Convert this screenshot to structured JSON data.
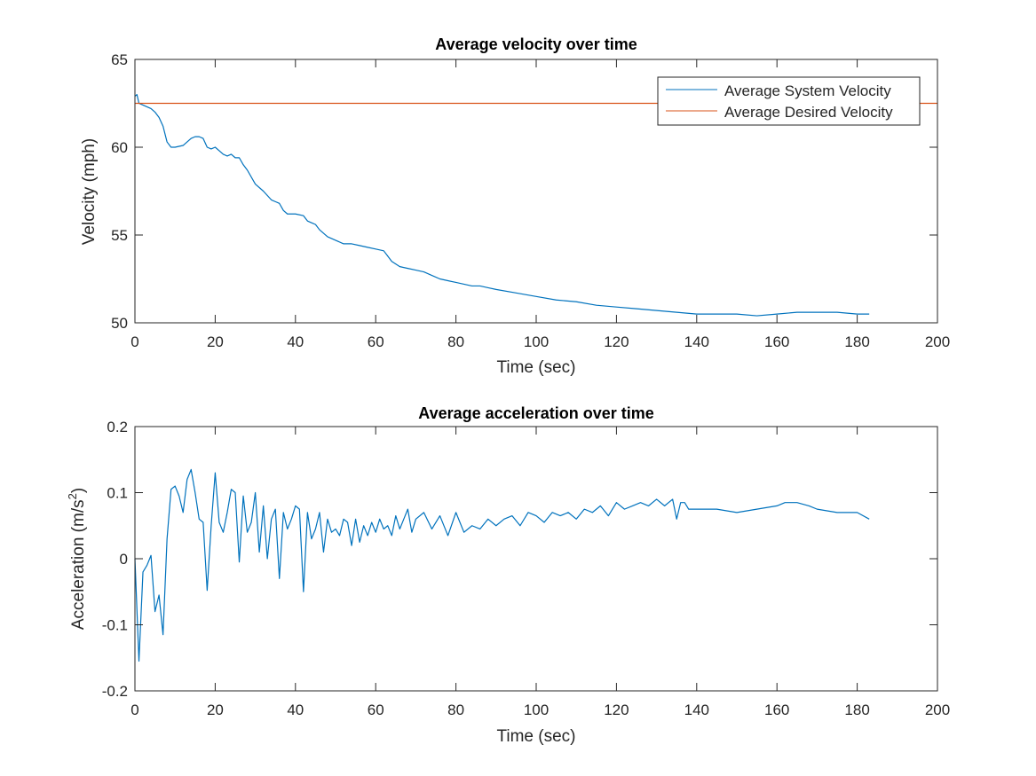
{
  "chart_data": [
    {
      "type": "line",
      "title": "Average velocity over time",
      "xlabel": "Time (sec)",
      "ylabel": "Velocity (mph)",
      "xlim": [
        0,
        200
      ],
      "ylim": [
        50,
        65
      ],
      "xticks": [
        0,
        20,
        40,
        60,
        80,
        100,
        120,
        140,
        160,
        180,
        200
      ],
      "yticks": [
        50,
        55,
        60,
        65
      ],
      "grid": false,
      "legend_position": "top-right",
      "series": [
        {
          "name": "Average System Velocity",
          "color": "#0072BD",
          "x": [
            0,
            0.5,
            1,
            2,
            3,
            4,
            5,
            6,
            7,
            8,
            9,
            10,
            12,
            13,
            14,
            15,
            16,
            17,
            18,
            19,
            20,
            21,
            22,
            23,
            24,
            25,
            26,
            27,
            28,
            30,
            32,
            34,
            35,
            36,
            37,
            38,
            40,
            42,
            43,
            44,
            45,
            46,
            48,
            50,
            52,
            54,
            56,
            58,
            60,
            62,
            63,
            64,
            66,
            68,
            70,
            72,
            74,
            76,
            78,
            80,
            82,
            84,
            86,
            88,
            90,
            95,
            100,
            105,
            110,
            115,
            120,
            125,
            130,
            135,
            140,
            145,
            150,
            155,
            160,
            165,
            170,
            175,
            180,
            183
          ],
          "values": [
            62.9,
            63.0,
            62.5,
            62.4,
            62.3,
            62.2,
            62.0,
            61.7,
            61.2,
            60.3,
            60.0,
            60.0,
            60.1,
            60.3,
            60.5,
            60.6,
            60.6,
            60.5,
            60.0,
            59.9,
            60.0,
            59.8,
            59.6,
            59.5,
            59.6,
            59.4,
            59.4,
            59.0,
            58.7,
            57.9,
            57.5,
            57.0,
            56.9,
            56.8,
            56.4,
            56.2,
            56.2,
            56.1,
            55.8,
            55.7,
            55.6,
            55.3,
            54.9,
            54.7,
            54.5,
            54.5,
            54.4,
            54.3,
            54.2,
            54.1,
            53.8,
            53.5,
            53.2,
            53.1,
            53.0,
            52.9,
            52.7,
            52.5,
            52.4,
            52.3,
            52.2,
            52.1,
            52.1,
            52.0,
            51.9,
            51.7,
            51.5,
            51.3,
            51.2,
            51.0,
            50.9,
            50.8,
            50.7,
            50.6,
            50.5,
            50.5,
            50.5,
            50.4,
            50.5,
            50.6,
            50.6,
            50.6,
            50.5,
            50.5
          ]
        },
        {
          "name": "Average Desired Velocity",
          "color": "#D95319",
          "x": [
            0,
            200
          ],
          "values": [
            62.5,
            62.5
          ]
        }
      ]
    },
    {
      "type": "line",
      "title": "Average acceleration over time",
      "xlabel": "Time (sec)",
      "ylabel": "Acceleration (m/s",
      "ylabel_sup": "2",
      "ylabel_end": ")",
      "xlim": [
        0,
        200
      ],
      "ylim": [
        -0.2,
        0.2
      ],
      "xticks": [
        0,
        20,
        40,
        60,
        80,
        100,
        120,
        140,
        160,
        180,
        200
      ],
      "yticks": [
        -0.2,
        -0.1,
        0,
        0.1,
        0.2
      ],
      "grid": false,
      "series": [
        {
          "name": "",
          "color": "#0072BD",
          "x": [
            0,
            1,
            2,
            3,
            4,
            5,
            6,
            7,
            8,
            9,
            10,
            11,
            12,
            13,
            14,
            15,
            16,
            17,
            18,
            19,
            20,
            21,
            22,
            23,
            24,
            25,
            26,
            27,
            28,
            29,
            30,
            31,
            32,
            33,
            34,
            35,
            36,
            37,
            38,
            39,
            40,
            41,
            42,
            43,
            44,
            45,
            46,
            47,
            48,
            49,
            50,
            51,
            52,
            53,
            54,
            55,
            56,
            57,
            58,
            59,
            60,
            61,
            62,
            63,
            64,
            65,
            66,
            67,
            68,
            69,
            70,
            72,
            74,
            76,
            78,
            80,
            82,
            84,
            86,
            88,
            90,
            92,
            94,
            96,
            98,
            100,
            102,
            104,
            106,
            108,
            110,
            112,
            114,
            116,
            118,
            120,
            122,
            124,
            126,
            128,
            130,
            132,
            134,
            135,
            136,
            137,
            138,
            140,
            145,
            150,
            155,
            160,
            162,
            165,
            168,
            170,
            175,
            180,
            183
          ],
          "values": [
            0.0,
            -0.155,
            -0.02,
            -0.01,
            0.005,
            -0.08,
            -0.055,
            -0.115,
            0.03,
            0.105,
            0.11,
            0.095,
            0.07,
            0.12,
            0.135,
            0.1,
            0.06,
            0.055,
            -0.048,
            0.05,
            0.13,
            0.055,
            0.04,
            0.07,
            0.105,
            0.1,
            -0.005,
            0.095,
            0.04,
            0.055,
            0.1,
            0.01,
            0.08,
            0.0,
            0.06,
            0.075,
            -0.03,
            0.07,
            0.045,
            0.06,
            0.08,
            0.075,
            -0.05,
            0.07,
            0.03,
            0.045,
            0.07,
            0.01,
            0.06,
            0.04,
            0.045,
            0.035,
            0.06,
            0.055,
            0.02,
            0.06,
            0.025,
            0.05,
            0.035,
            0.055,
            0.04,
            0.06,
            0.045,
            0.05,
            0.035,
            0.065,
            0.045,
            0.06,
            0.075,
            0.04,
            0.06,
            0.07,
            0.045,
            0.065,
            0.035,
            0.07,
            0.04,
            0.05,
            0.045,
            0.06,
            0.05,
            0.06,
            0.065,
            0.05,
            0.07,
            0.065,
            0.055,
            0.07,
            0.065,
            0.07,
            0.06,
            0.075,
            0.07,
            0.08,
            0.065,
            0.085,
            0.075,
            0.08,
            0.085,
            0.08,
            0.09,
            0.08,
            0.09,
            0.06,
            0.085,
            0.085,
            0.075,
            0.075,
            0.075,
            0.07,
            0.075,
            0.08,
            0.085,
            0.085,
            0.08,
            0.075,
            0.07,
            0.07,
            0.06
          ]
        }
      ]
    }
  ]
}
